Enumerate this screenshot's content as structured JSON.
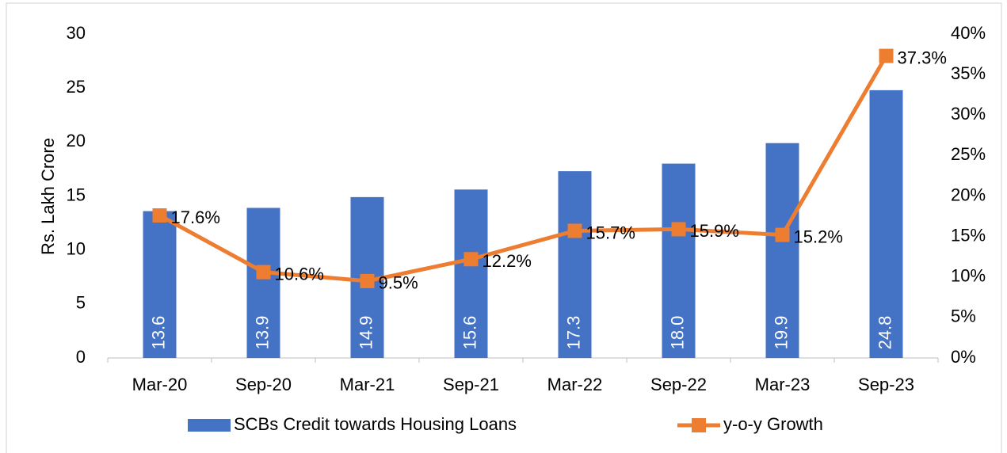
{
  "chart_data": {
    "type": "bar-line",
    "y_label": "Rs. Lakh Crore",
    "categories": [
      "Mar-20",
      "Sep-20",
      "Mar-21",
      "Sep-21",
      "Mar-22",
      "Sep-22",
      "Mar-23",
      "Sep-23"
    ],
    "series": [
      {
        "name": "SCBs Credit towards Housing Loans",
        "type": "bar",
        "color": "#4472c4",
        "values": [
          13.6,
          13.9,
          14.9,
          15.6,
          17.3,
          18.0,
          19.9,
          24.8
        ],
        "value_labels": [
          "13.6",
          "13.9",
          "14.9",
          "15.6",
          "17.3",
          "18.0",
          "19.9",
          "24.8"
        ]
      },
      {
        "name": "y-o-y Growth",
        "type": "line",
        "axis": "y2",
        "color": "#ed7d31",
        "values": [
          17.6,
          10.6,
          9.5,
          12.2,
          15.7,
          15.9,
          15.2,
          37.3
        ],
        "value_labels": [
          "17.6%",
          "10.6%",
          "9.5%",
          "12.2%",
          "15.7%",
          "15.9%",
          "15.2%",
          "37.3%"
        ]
      }
    ],
    "ylim": [
      0,
      30
    ],
    "yticks": [
      0,
      5,
      10,
      15,
      20,
      25,
      30
    ],
    "y2lim": [
      0,
      40
    ],
    "y2ticks": [
      {
        "value": 0,
        "label": "0%"
      },
      {
        "value": 5,
        "label": "5%"
      },
      {
        "value": 10,
        "label": "10%"
      },
      {
        "value": 15,
        "label": "15%"
      },
      {
        "value": 20,
        "label": "20%"
      },
      {
        "value": 25,
        "label": "25%"
      },
      {
        "value": 30,
        "label": "30%"
      },
      {
        "value": 35,
        "label": "35%"
      },
      {
        "value": 40,
        "label": "40%"
      }
    ],
    "legend": "bottom"
  }
}
